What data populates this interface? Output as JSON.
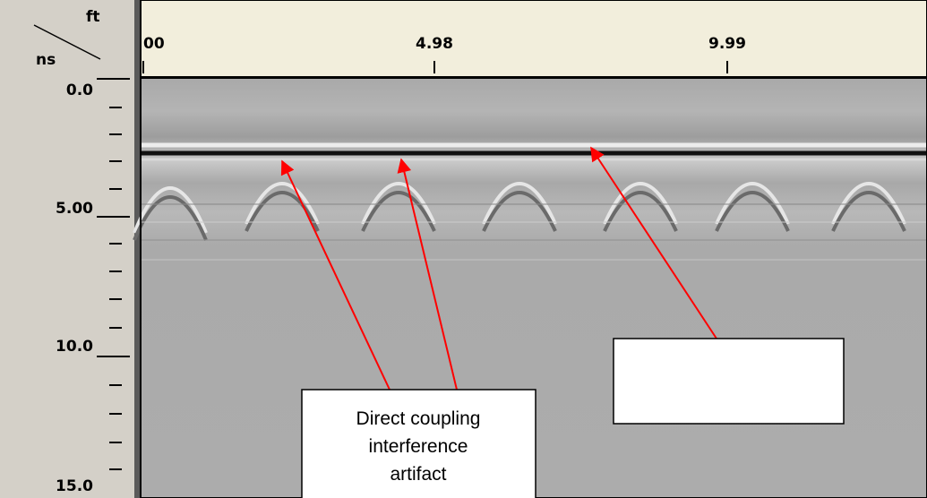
{
  "axes": {
    "x_unit": "ft",
    "y_unit": "ns",
    "x_tick_labels": [
      "00",
      "4.98",
      "9.99"
    ],
    "y_tick_labels": [
      "0.0",
      "5.00",
      "10.0",
      "15.0"
    ]
  },
  "annotations": [
    {
      "lines": [
        "Direct coupling",
        "interference",
        "artifact"
      ]
    }
  ]
}
